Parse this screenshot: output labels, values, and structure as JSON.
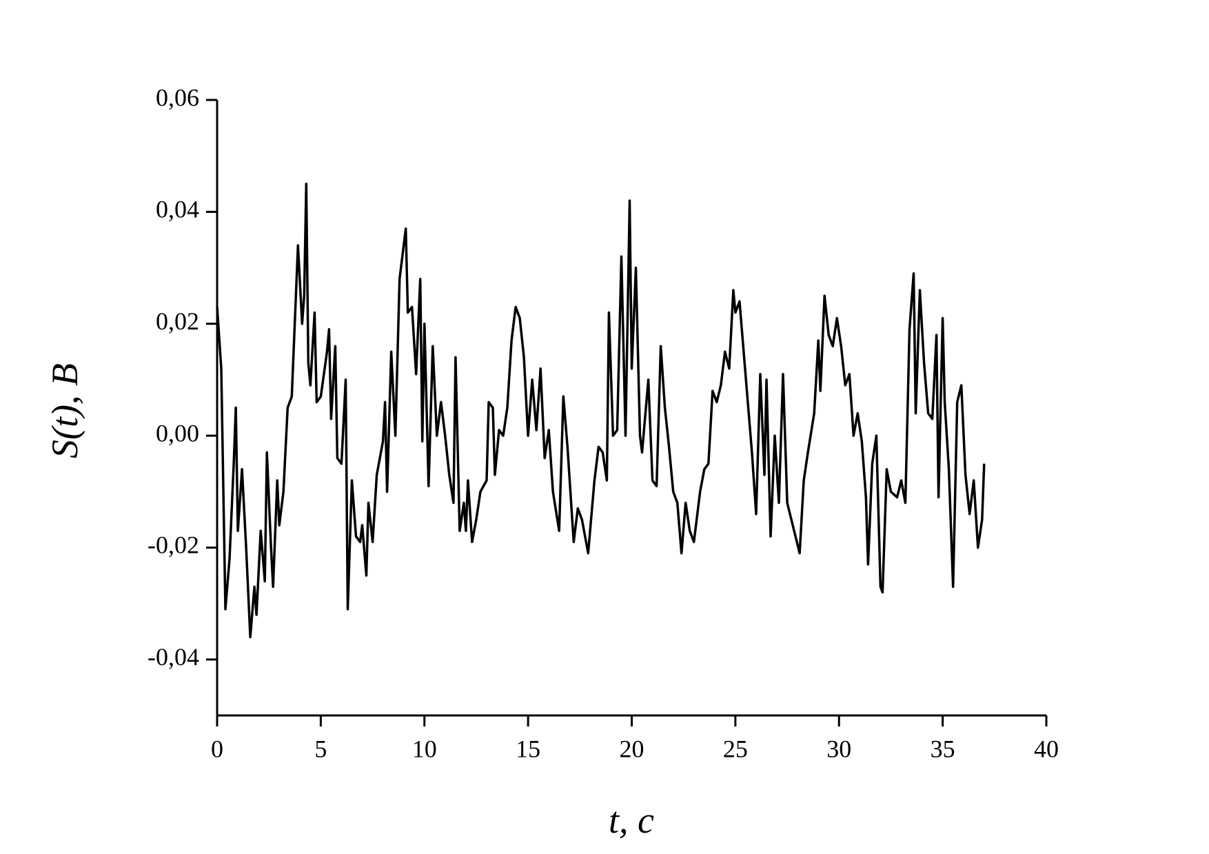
{
  "chart_data": {
    "type": "line",
    "x_label": "t, c",
    "y_label": "S(t), B",
    "x": [
      0,
      0.2,
      0.4,
      0.6,
      0.8,
      0.9,
      1.0,
      1.2,
      1.4,
      1.6,
      1.8,
      1.9,
      2.1,
      2.3,
      2.4,
      2.6,
      2.7,
      2.9,
      3.0,
      3.2,
      3.4,
      3.6,
      3.8,
      3.9,
      4.1,
      4.2,
      4.3,
      4.4,
      4.5,
      4.7,
      4.8,
      5.0,
      5.3,
      5.4,
      5.5,
      5.7,
      5.8,
      6.0,
      6.2,
      6.3,
      6.5,
      6.7,
      6.9,
      7.0,
      7.2,
      7.3,
      7.5,
      7.7,
      8.0,
      8.1,
      8.2,
      8.4,
      8.6,
      8.8,
      9.1,
      9.2,
      9.4,
      9.6,
      9.8,
      9.9,
      10.0,
      10.2,
      10.4,
      10.6,
      10.8,
      11.0,
      11.2,
      11.4,
      11.5,
      11.7,
      11.9,
      12.0,
      12.1,
      12.3,
      12.5,
      12.7,
      13.0,
      13.1,
      13.3,
      13.4,
      13.6,
      13.8,
      14.0,
      14.2,
      14.4,
      14.6,
      14.8,
      15.0,
      15.2,
      15.4,
      15.6,
      15.8,
      16.0,
      16.2,
      16.5,
      16.7,
      16.9,
      17.2,
      17.4,
      17.6,
      17.9,
      18.2,
      18.4,
      18.6,
      18.8,
      18.9,
      19.1,
      19.3,
      19.5,
      19.7,
      19.9,
      20.0,
      20.2,
      20.4,
      20.5,
      20.8,
      21.0,
      21.2,
      21.4,
      21.6,
      21.8,
      22.0,
      22.2,
      22.4,
      22.6,
      22.8,
      23.0,
      23.3,
      23.5,
      23.7,
      23.9,
      24.1,
      24.3,
      24.5,
      24.7,
      24.9,
      25.0,
      25.2,
      25.4,
      25.6,
      25.8,
      26.0,
      26.2,
      26.4,
      26.5,
      26.7,
      26.9,
      27.1,
      27.3,
      27.5,
      27.7,
      27.9,
      28.1,
      28.3,
      28.5,
      28.8,
      29.0,
      29.1,
      29.3,
      29.5,
      29.7,
      29.9,
      30.1,
      30.3,
      30.5,
      30.7,
      30.9,
      31.1,
      31.3,
      31.4,
      31.6,
      31.8,
      32.0,
      32.1,
      32.3,
      32.5,
      32.8,
      33.0,
      33.2,
      33.4,
      33.6,
      33.7,
      33.9,
      34.1,
      34.3,
      34.5,
      34.7,
      34.8,
      35.0,
      35.1,
      35.3,
      35.5,
      35.7,
      35.9,
      36.1,
      36.3,
      36.5,
      36.7,
      36.9,
      37.0
    ],
    "series": [
      {
        "name": "S(t)",
        "color": "#000000",
        "values": [
          0.023,
          0.012,
          -0.031,
          -0.022,
          -0.005,
          0.005,
          -0.017,
          -0.006,
          -0.02,
          -0.036,
          -0.027,
          -0.032,
          -0.017,
          -0.026,
          -0.003,
          -0.02,
          -0.027,
          -0.008,
          -0.016,
          -0.01,
          0.005,
          0.007,
          0.025,
          0.034,
          0.02,
          0.025,
          0.045,
          0.013,
          0.009,
          0.022,
          0.006,
          0.007,
          0.015,
          0.019,
          0.003,
          0.016,
          -0.004,
          -0.005,
          0.01,
          -0.031,
          -0.008,
          -0.018,
          -0.019,
          -0.016,
          -0.025,
          -0.012,
          -0.019,
          -0.007,
          -0.001,
          0.006,
          -0.01,
          0.015,
          0.0,
          0.028,
          0.037,
          0.022,
          0.023,
          0.011,
          0.028,
          -0.001,
          0.02,
          -0.009,
          0.016,
          0.0,
          0.006,
          0.0,
          -0.007,
          -0.012,
          0.014,
          -0.017,
          -0.012,
          -0.017,
          -0.008,
          -0.019,
          -0.015,
          -0.01,
          -0.008,
          0.006,
          0.005,
          -0.007,
          0.001,
          0.0,
          0.005,
          0.017,
          0.023,
          0.021,
          0.014,
          0.0,
          0.01,
          0.001,
          0.012,
          -0.004,
          0.001,
          -0.01,
          -0.017,
          0.007,
          -0.002,
          -0.019,
          -0.013,
          -0.015,
          -0.021,
          -0.008,
          -0.002,
          -0.003,
          -0.008,
          0.022,
          0.0,
          0.001,
          0.032,
          0.0,
          0.042,
          0.012,
          0.03,
          0.0,
          -0.003,
          0.01,
          -0.008,
          -0.009,
          0.016,
          0.005,
          -0.002,
          -0.01,
          -0.012,
          -0.021,
          -0.012,
          -0.017,
          -0.019,
          -0.01,
          -0.006,
          -0.005,
          0.008,
          0.006,
          0.009,
          0.015,
          0.012,
          0.026,
          0.022,
          0.024,
          0.015,
          0.006,
          -0.003,
          -0.014,
          0.011,
          -0.007,
          0.01,
          -0.018,
          0.0,
          -0.012,
          0.011,
          -0.012,
          -0.015,
          -0.018,
          -0.021,
          -0.008,
          -0.003,
          0.004,
          0.017,
          0.008,
          0.025,
          0.018,
          0.016,
          0.021,
          0.016,
          0.009,
          0.011,
          0.0,
          0.004,
          -0.001,
          -0.011,
          -0.023,
          -0.005,
          0.0,
          -0.027,
          -0.028,
          -0.006,
          -0.01,
          -0.011,
          -0.008,
          -0.012,
          0.019,
          0.029,
          0.004,
          0.026,
          0.013,
          0.004,
          0.003,
          0.018,
          -0.011,
          0.021,
          0.006,
          -0.006,
          -0.027,
          0.006,
          0.009,
          -0.007,
          -0.014,
          -0.008,
          -0.02,
          -0.015,
          -0.005
        ]
      }
    ],
    "xlim": [
      0,
      40
    ],
    "xticks": [
      0,
      5,
      10,
      15,
      20,
      25,
      30,
      35,
      40
    ],
    "ylim": [
      -0.05,
      0.06
    ],
    "yticks": [
      {
        "value": -0.04,
        "label": "-0,04"
      },
      {
        "value": -0.02,
        "label": "-0,02"
      },
      {
        "value": 0,
        "label": "0,00"
      },
      {
        "value": 0.02,
        "label": "0,02"
      },
      {
        "value": 0.04,
        "label": "0,04"
      },
      {
        "value": 0.06,
        "label": "0,06"
      }
    ]
  }
}
